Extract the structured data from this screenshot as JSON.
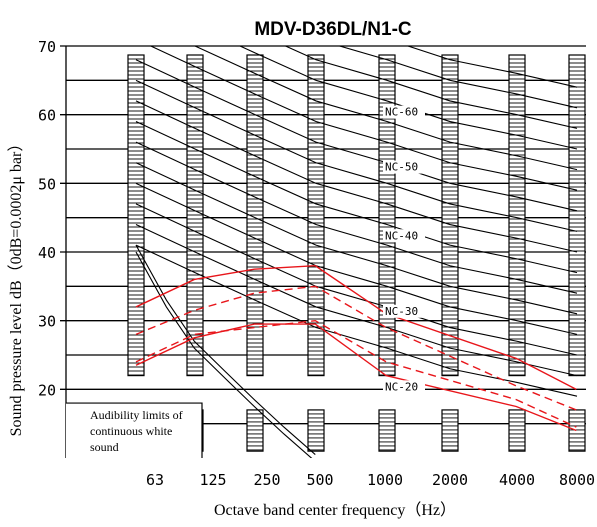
{
  "chart_data": {
    "type": "line",
    "title": "MDV-D36DL/N1-C",
    "xlabel": "Octave band center frequency（Hz）",
    "ylabel": "Sound pressure level dB（0dB=0.0002μ bar）",
    "x_tick_labels": [
      "63",
      "125",
      "250",
      "500",
      "1000",
      "2000",
      "4000",
      "8000"
    ],
    "y_ticks": [
      20,
      30,
      40,
      50,
      60,
      70
    ],
    "ylim": [
      10,
      70
    ],
    "grid": true,
    "nc_labels": [
      "NC-60",
      "NC-50",
      "NC-40",
      "NC-30",
      "NC-20"
    ],
    "annotation": [
      "Audibility limits of",
      "continuous white",
      "sound"
    ],
    "nc_curves": [
      {
        "values": [
          86,
          83,
          79,
          75,
          71,
          68,
          66,
          64
        ]
      },
      {
        "values": [
          83,
          79,
          75,
          71,
          68,
          65,
          63,
          61
        ]
      },
      {
        "values": [
          80,
          76,
          72,
          68,
          65,
          62,
          60,
          58
        ]
      },
      {
        "values": [
          77,
          73,
          69,
          65,
          62,
          59,
          57,
          55
        ]
      },
      {
        "values": [
          74,
          70,
          66,
          62,
          59,
          56,
          54,
          52
        ]
      },
      {
        "values": [
          71,
          67,
          63,
          59,
          56,
          53,
          51,
          49
        ]
      },
      {
        "values": [
          68,
          64,
          60,
          56,
          53,
          50,
          48,
          46
        ]
      },
      {
        "values": [
          65,
          61,
          57,
          53,
          50,
          47,
          45,
          43
        ]
      },
      {
        "values": [
          62,
          58,
          54,
          50,
          47,
          44,
          42,
          40
        ]
      },
      {
        "values": [
          59,
          55,
          51,
          47,
          44,
          41,
          39,
          37
        ]
      },
      {
        "values": [
          56,
          52,
          48,
          44,
          41,
          38,
          36,
          34
        ]
      },
      {
        "values": [
          53,
          49,
          45,
          41,
          38,
          35,
          33,
          31
        ]
      },
      {
        "values": [
          50,
          46,
          42,
          38,
          35,
          32,
          30,
          28
        ]
      },
      {
        "values": [
          47,
          43,
          39,
          35,
          32,
          29,
          27,
          25
        ]
      },
      {
        "values": [
          44,
          40,
          36,
          32,
          29,
          26,
          24,
          22
        ]
      },
      {
        "values": [
          41,
          37,
          33,
          29,
          26,
          23,
          21,
          19
        ]
      }
    ],
    "hearing_threshold": {
      "x": [
        63,
        90,
        125,
        180,
        250,
        350,
        500
      ],
      "curves": [
        [
          41,
          33,
          27,
          22.5,
          18.5,
          14.5,
          10.5
        ],
        [
          40,
          32,
          26,
          21.5,
          17.5,
          13.5,
          9.5
        ]
      ]
    },
    "measured_series": [
      {
        "style": "solid",
        "values": [
          32,
          36,
          37.5,
          38,
          31,
          24.5,
          20
        ]
      },
      {
        "style": "dashed",
        "values": [
          28,
          31.5,
          34,
          35,
          29,
          20.5,
          17
        ]
      },
      {
        "style": "dashed",
        "values": [
          24,
          28,
          29,
          30,
          24,
          18.5,
          14.5
        ]
      },
      {
        "style": "solid",
        "values": [
          23.5,
          27.5,
          29.5,
          29.5,
          22,
          17.5,
          14
        ]
      }
    ],
    "measured_x": [
      63,
      125,
      250,
      500,
      1000,
      4000,
      8000
    ],
    "colors": {
      "measured": "#e8161b",
      "grid": "#000000"
    }
  }
}
